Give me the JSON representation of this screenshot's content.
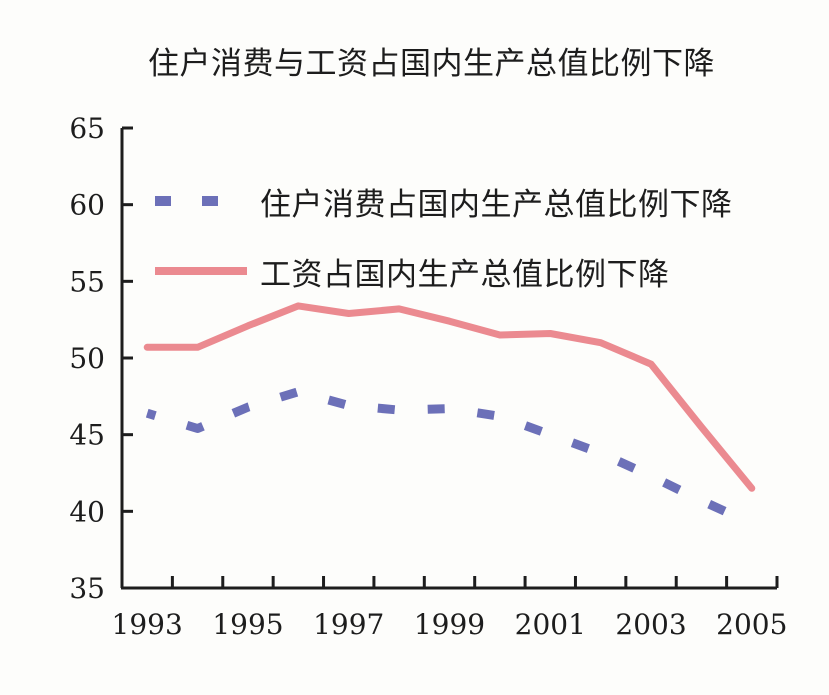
{
  "title": "住户消费与工资占国内生产总值比例下降",
  "colors": {
    "household_series": "#6c70b8",
    "wage_series": "#eb8a90",
    "axis": "#1d1d1d",
    "text": "#1d1d1d",
    "background": "#fdfdfb"
  },
  "legend": {
    "items": [
      {
        "label": "住户消费占国内生产总值比例下降",
        "series": "household",
        "line_style": "dashed"
      },
      {
        "label": "工资占国内生产总值比例下降",
        "series": "wage",
        "line_style": "solid"
      }
    ]
  },
  "chart_data": {
    "type": "line",
    "title": "住户消费与工资占国内生产总值比例下降",
    "x": [
      1993,
      1994,
      1995,
      1996,
      1997,
      1998,
      1999,
      2000,
      2001,
      2002,
      2003,
      2004,
      2005
    ],
    "x_axis_labels": [
      "1993",
      "1995",
      "1997",
      "1999",
      "2001",
      "2003",
      "2005"
    ],
    "ylim": [
      35,
      65
    ],
    "yticks": [
      35,
      40,
      45,
      50,
      55,
      60,
      65
    ],
    "grid": false,
    "legend_position": "inside-top-left",
    "series": [
      {
        "name": "住户消费占国内生产总值比例下降",
        "color": "#6c70b8",
        "style": "dashed",
        "values": [
          46.4,
          45.4,
          46.8,
          47.8,
          46.9,
          46.6,
          46.7,
          46.2,
          45.0,
          43.8,
          42.3,
          40.7,
          39.2
        ]
      },
      {
        "name": "工资占国内生产总值比例下降",
        "color": "#eb8a90",
        "style": "solid",
        "values": [
          50.7,
          50.7,
          52.1,
          53.4,
          52.9,
          53.2,
          52.4,
          51.5,
          51.6,
          51.0,
          49.6,
          45.5,
          41.5
        ]
      }
    ]
  }
}
